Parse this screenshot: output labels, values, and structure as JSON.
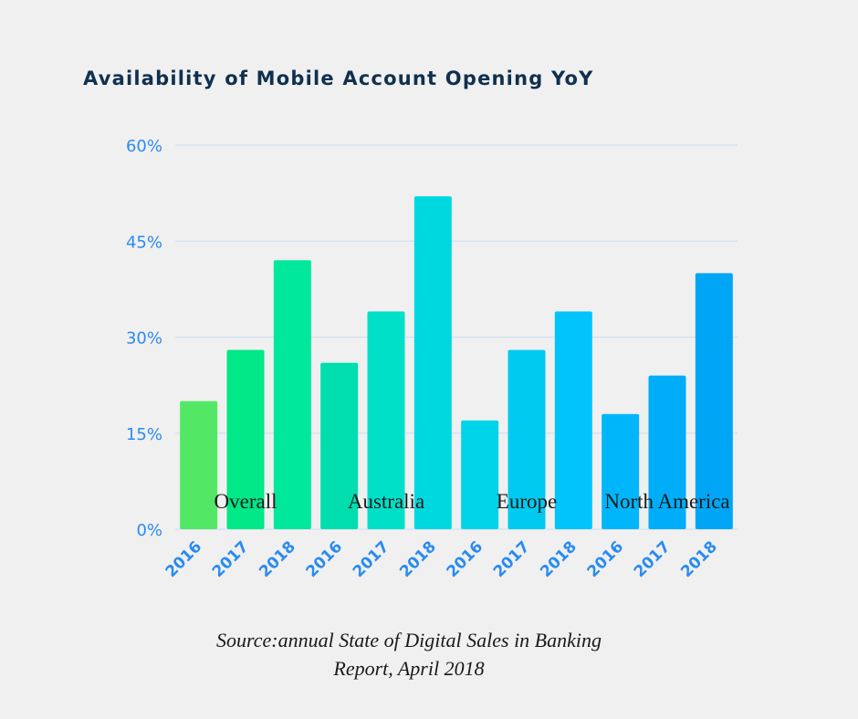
{
  "chart_data": {
    "type": "bar",
    "title": "Availability of Mobile Account Opening YoY",
    "xlabel": "",
    "ylabel": "",
    "ylim": [
      0,
      60
    ],
    "yticks": [
      "0%",
      "15%",
      "30%",
      "45%",
      "60%"
    ],
    "ytick_values": [
      0,
      15,
      30,
      45,
      60
    ],
    "grid": true,
    "groups": [
      "Overall",
      "Australia",
      "Europe",
      "North America"
    ],
    "categories": [
      "2016",
      "2017",
      "2018",
      "2016",
      "2017",
      "2018",
      "2016",
      "2017",
      "2018",
      "2016",
      "2017",
      "2018"
    ],
    "values": [
      20,
      28,
      42,
      26,
      34,
      52,
      17,
      28,
      34,
      18,
      24,
      40
    ],
    "colors": [
      "#52e865",
      "#00e887",
      "#00e89c",
      "#00deb0",
      "#00e0c8",
      "#00d8e0",
      "#00d4e8",
      "#00caf0",
      "#00c4fb",
      "#00b6fb",
      "#00adf9",
      "#00a6f5"
    ],
    "source": [
      "Source:annual State of Digital Sales in Banking",
      "Report, April 2018"
    ]
  },
  "colors": {
    "title": "#10304f",
    "tick": "#2a8bef",
    "grid": "#cfe0f2",
    "background": "#f0f0f0"
  }
}
